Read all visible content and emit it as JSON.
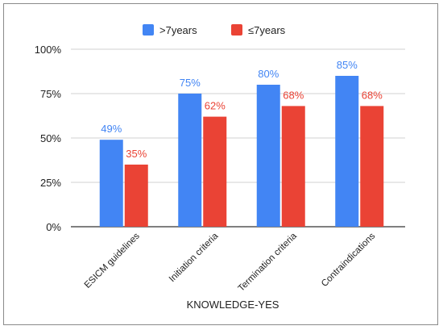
{
  "chart_data": {
    "type": "bar",
    "title": "",
    "xlabel": "KNOWLEDGE-YES",
    "ylabel": "",
    "categories": [
      "ESICM guidelines",
      "Initiation criteria",
      "Termination criteria",
      "Contraindications"
    ],
    "series": [
      {
        "name": ">7years",
        "values": [
          49,
          75,
          80,
          85
        ],
        "labels": [
          "49%",
          "75%",
          "80%",
          "85%"
        ],
        "color": "#4285F4"
      },
      {
        "name": "≤7years",
        "values": [
          35,
          62,
          68,
          68
        ],
        "labels": [
          "35%",
          "62%",
          "68%",
          "68%"
        ],
        "color": "#EA4335"
      }
    ],
    "ylim": [
      0,
      100
    ],
    "yticks": [
      0,
      25,
      50,
      75,
      100
    ],
    "ytick_labels": [
      "0%",
      "25%",
      "50%",
      "75%",
      "100%"
    ],
    "grid": true,
    "legend_position": "top"
  }
}
